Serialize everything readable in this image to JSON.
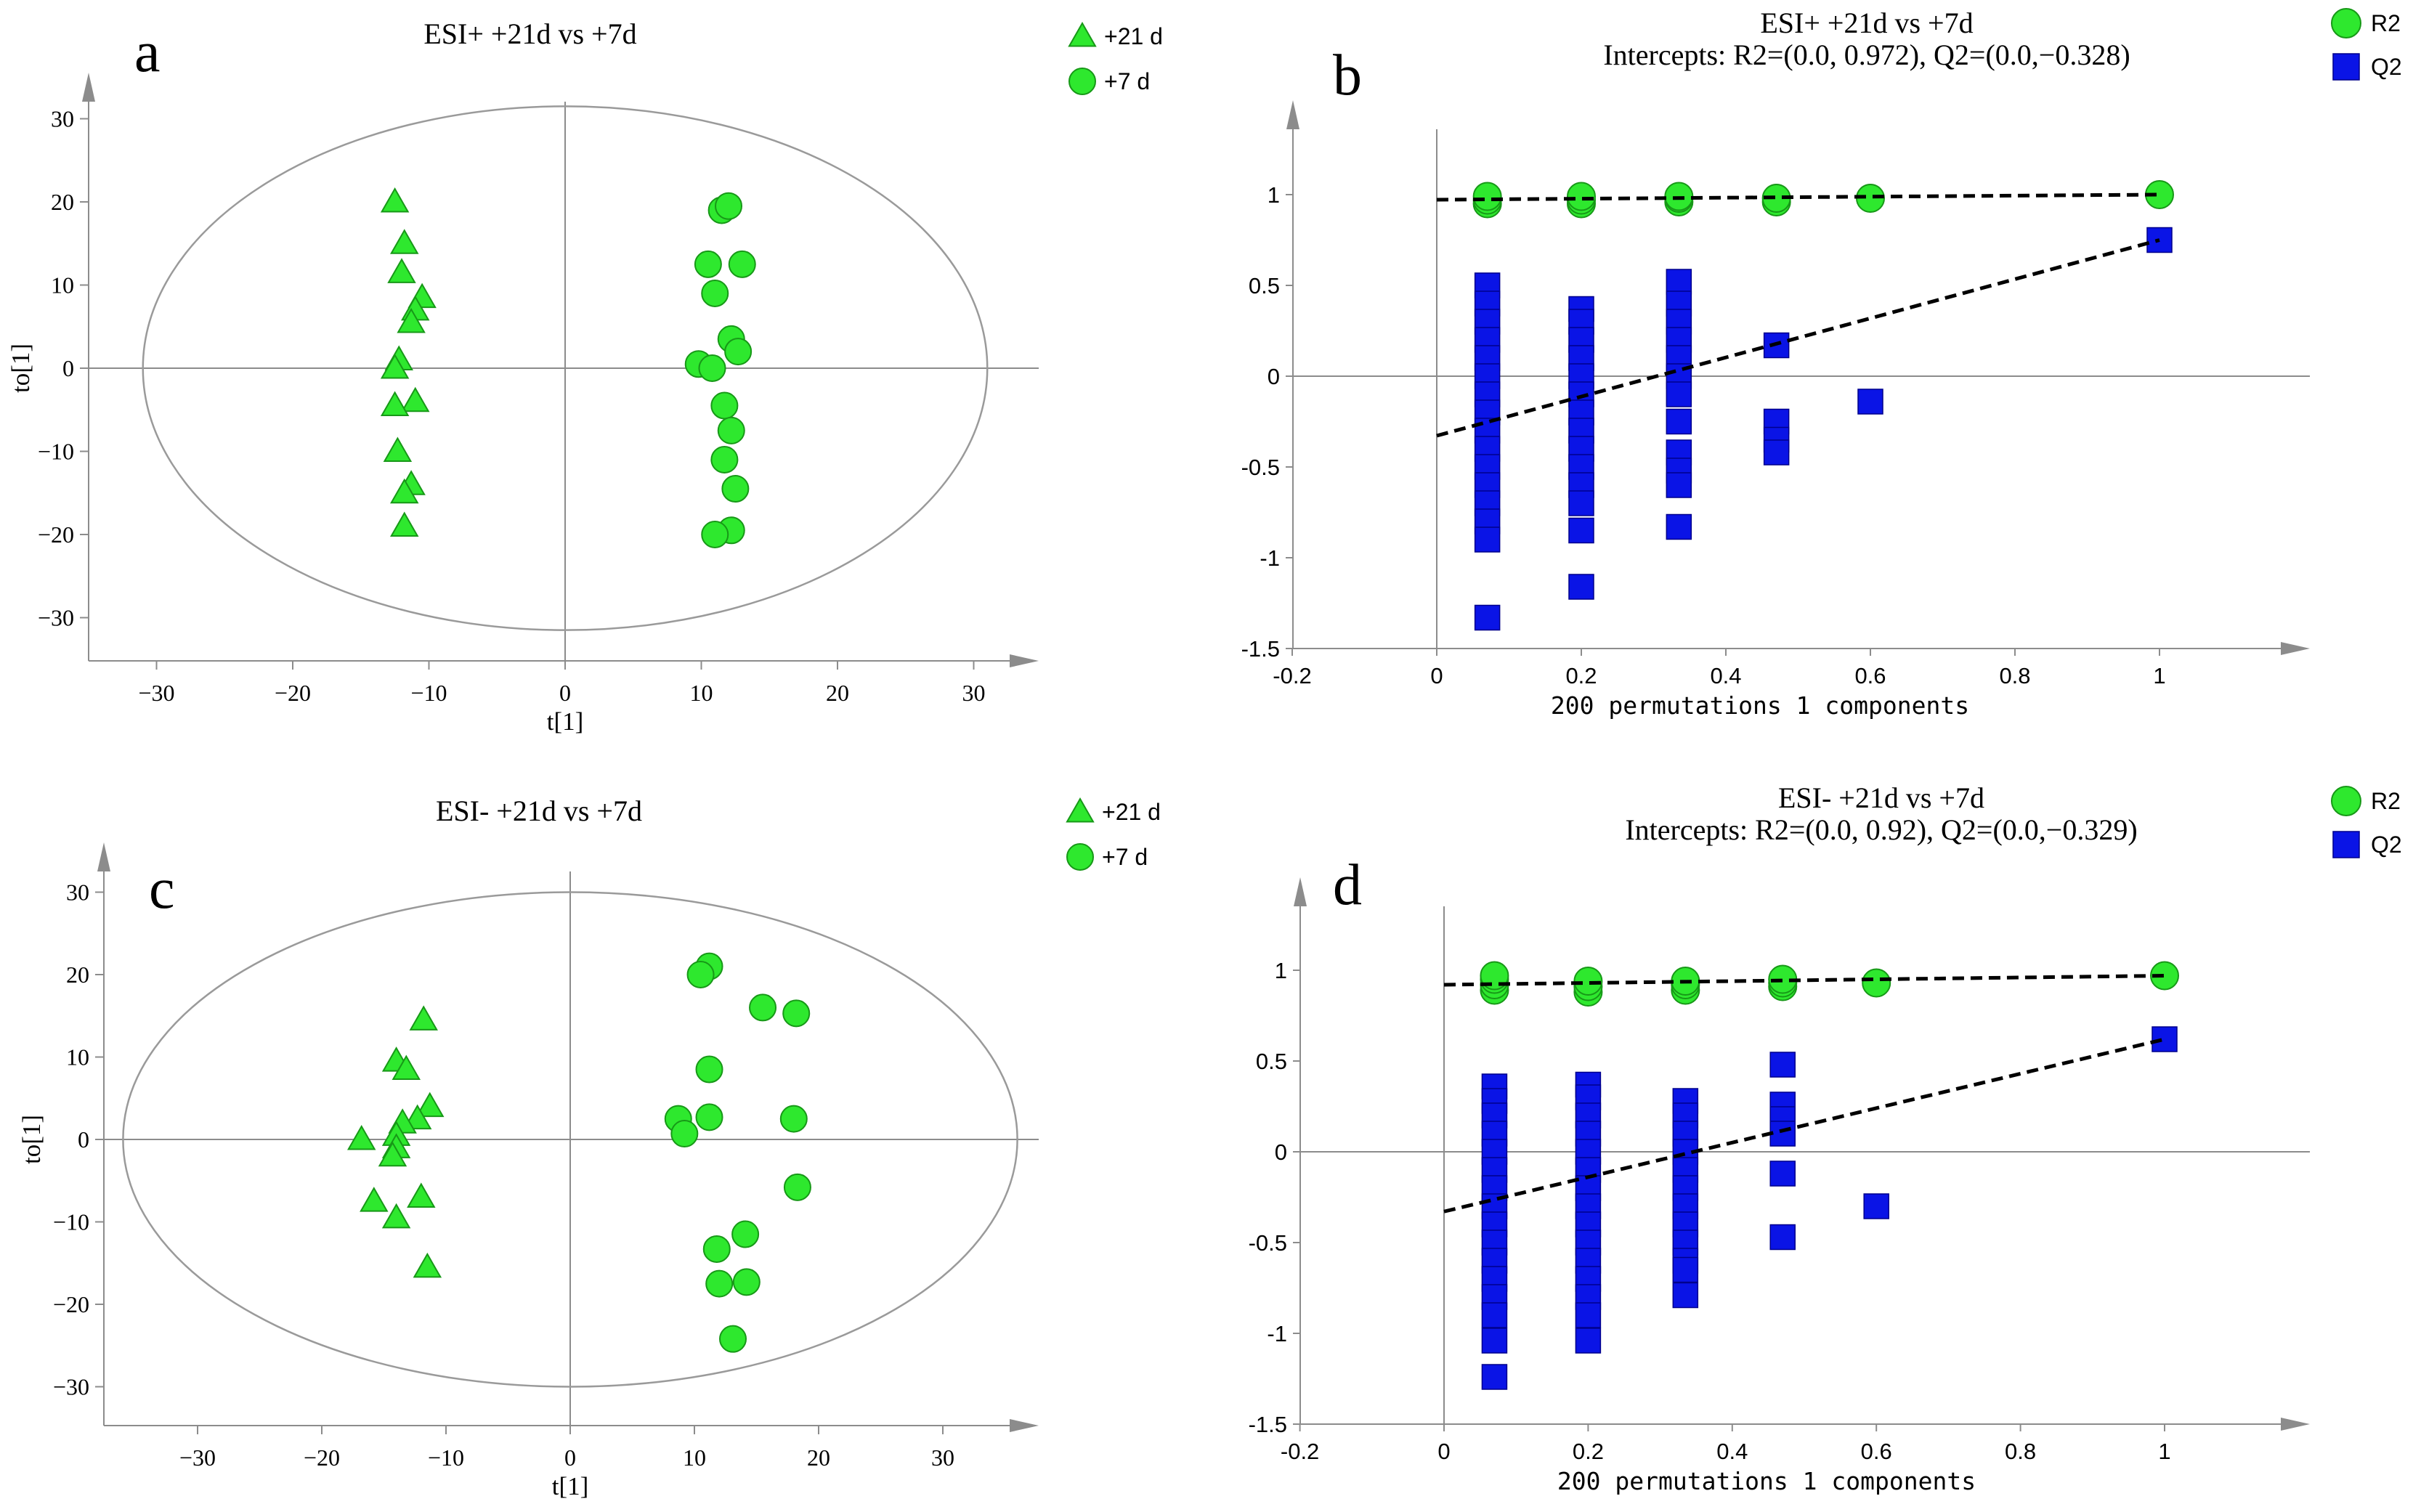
{
  "colors": {
    "green_fill": "#2ee82e",
    "green_stroke": "#179817",
    "blue_fill": "#0a14e6",
    "blue_stroke": "#00008c",
    "axis": "#8c8c8c",
    "ellipse": "#9a9a9a"
  },
  "chart_data": [
    {
      "panel": "a",
      "type": "scatter",
      "title": "ESI+ +21d vs +7d",
      "xlabel": "t[1]",
      "ylabel": "to[1]",
      "xlim": [
        -35,
        35
      ],
      "ylim": [
        -35,
        35
      ],
      "xticks": [
        -30,
        -20,
        -10,
        0,
        10,
        20,
        30
      ],
      "yticks": [
        -30,
        -20,
        -10,
        0,
        10,
        20,
        30
      ],
      "ellipse": {
        "rx": 31,
        "ry": 31.5
      },
      "legend": [
        "+21 d",
        "+7 d"
      ],
      "series": [
        {
          "name": "+21 d",
          "marker": "triangle",
          "points": [
            [
              -12.5,
              20
            ],
            [
              -11.8,
              15
            ],
            [
              -12,
              11.5
            ],
            [
              -10.5,
              8.5
            ],
            [
              -11,
              7
            ],
            [
              -11.3,
              5.5
            ],
            [
              -12.2,
              1
            ],
            [
              -12.5,
              0
            ],
            [
              -11,
              -4
            ],
            [
              -12.5,
              -4.5
            ],
            [
              -12.3,
              -10
            ],
            [
              -11.3,
              -14
            ],
            [
              -11.8,
              -15
            ],
            [
              -11.8,
              -19
            ]
          ]
        },
        {
          "name": "+7 d",
          "marker": "circle",
          "points": [
            [
              11.5,
              19
            ],
            [
              12,
              19.5
            ],
            [
              10.5,
              12.5
            ],
            [
              13,
              12.5
            ],
            [
              11,
              9
            ],
            [
              12.2,
              3.5
            ],
            [
              12.7,
              2
            ],
            [
              9.8,
              0.5
            ],
            [
              10.8,
              0
            ],
            [
              11.7,
              -4.5
            ],
            [
              12.2,
              -7.5
            ],
            [
              11.7,
              -11
            ],
            [
              12.5,
              -14.5
            ],
            [
              12.2,
              -19.5
            ],
            [
              11,
              -20
            ]
          ]
        }
      ]
    },
    {
      "panel": "b",
      "type": "scatter",
      "title": "ESI+ +21d vs +7d",
      "subtitle": "Intercepts: R2=(0.0, 0.972), Q2=(0.0,−0.328)",
      "xlabel": "200 permutations 1 components",
      "xlim": [
        -0.22,
        1.2
      ],
      "ylim": [
        -1.5,
        1.45
      ],
      "xticks": [
        -0.2,
        0,
        0.2,
        0.4,
        0.6,
        0.8,
        1
      ],
      "yticks": [
        -1.5,
        -1,
        -0.5,
        0,
        0.5,
        1
      ],
      "legend": [
        "R2",
        "Q2"
      ],
      "regression_lines": {
        "R2": [
          [
            0,
            0.972
          ],
          [
            1,
            1.0
          ]
        ],
        "Q2": [
          [
            0,
            -0.328
          ],
          [
            1,
            0.75
          ]
        ]
      },
      "series": [
        {
          "name": "R2",
          "marker": "circle",
          "points": [
            [
              0.07,
              0.95
            ],
            [
              0.07,
              0.97
            ],
            [
              0.07,
              0.99
            ],
            [
              0.2,
              0.95
            ],
            [
              0.2,
              0.97
            ],
            [
              0.2,
              0.99
            ],
            [
              0.335,
              0.96
            ],
            [
              0.335,
              0.98
            ],
            [
              0.335,
              0.99
            ],
            [
              0.47,
              0.96
            ],
            [
              0.47,
              0.98
            ],
            [
              0.6,
              0.98
            ],
            [
              1,
              1.0
            ]
          ]
        },
        {
          "name": "Q2",
          "marker": "square",
          "points": [
            [
              0.07,
              0.5
            ],
            [
              0.07,
              0.4
            ],
            [
              0.07,
              0.3
            ],
            [
              0.07,
              0.2
            ],
            [
              0.07,
              0.1
            ],
            [
              0.07,
              0
            ],
            [
              0.07,
              -0.1
            ],
            [
              0.07,
              -0.2
            ],
            [
              0.07,
              -0.3
            ],
            [
              0.07,
              -0.4
            ],
            [
              0.07,
              -0.5
            ],
            [
              0.07,
              -0.6
            ],
            [
              0.07,
              -0.7
            ],
            [
              0.07,
              -0.8
            ],
            [
              0.07,
              -0.9
            ],
            [
              0.07,
              -1.33
            ],
            [
              0.2,
              0.37
            ],
            [
              0.2,
              0.3
            ],
            [
              0.2,
              0.2
            ],
            [
              0.2,
              0.1
            ],
            [
              0.2,
              0
            ],
            [
              0.2,
              -0.1
            ],
            [
              0.2,
              -0.2
            ],
            [
              0.2,
              -0.3
            ],
            [
              0.2,
              -0.4
            ],
            [
              0.2,
              -0.5
            ],
            [
              0.2,
              -0.6
            ],
            [
              0.2,
              -0.7
            ],
            [
              0.2,
              -0.85
            ],
            [
              0.2,
              -1.16
            ],
            [
              0.335,
              0.52
            ],
            [
              0.335,
              0.4
            ],
            [
              0.335,
              0.3
            ],
            [
              0.335,
              0.2
            ],
            [
              0.335,
              0.1
            ],
            [
              0.335,
              0
            ],
            [
              0.335,
              -0.1
            ],
            [
              0.335,
              -0.25
            ],
            [
              0.335,
              -0.42
            ],
            [
              0.335,
              -0.52
            ],
            [
              0.335,
              -0.6
            ],
            [
              0.335,
              -0.83
            ],
            [
              0.47,
              0.17
            ],
            [
              0.47,
              -0.25
            ],
            [
              0.47,
              -0.35
            ],
            [
              0.47,
              -0.42
            ],
            [
              0.6,
              -0.14
            ],
            [
              1,
              0.75
            ]
          ]
        }
      ]
    },
    {
      "panel": "c",
      "type": "scatter",
      "title": "ESI- +21d vs +7d",
      "xlabel": "t[1]",
      "ylabel": "to[1]",
      "xlim": [
        -38,
        38
      ],
      "ylim": [
        -35,
        35
      ],
      "xticks": [
        -30,
        -20,
        -10,
        0,
        10,
        20,
        30
      ],
      "yticks": [
        -30,
        -20,
        -10,
        0,
        10,
        20,
        30
      ],
      "ellipse": {
        "rx": 36,
        "ry": 30
      },
      "legend": [
        "+21 d",
        "+7 d"
      ],
      "series": [
        {
          "name": "+21 d",
          "marker": "triangle",
          "points": [
            [
              -11.8,
              14.5
            ],
            [
              -14,
              9.5
            ],
            [
              -13.2,
              8.5
            ],
            [
              -11.3,
              4
            ],
            [
              -12.3,
              2.5
            ],
            [
              -13.5,
              2
            ],
            [
              -14,
              0.5
            ],
            [
              -16.8,
              0
            ],
            [
              -14,
              -1
            ],
            [
              -14.3,
              -2
            ],
            [
              -12,
              -7
            ],
            [
              -15.8,
              -7.5
            ],
            [
              -14,
              -9.5
            ],
            [
              -11.5,
              -15.5
            ]
          ]
        },
        {
          "name": "+7 d",
          "marker": "circle",
          "points": [
            [
              11.2,
              21
            ],
            [
              10.5,
              20
            ],
            [
              15.5,
              16
            ],
            [
              18.2,
              15.3
            ],
            [
              11.2,
              8.5
            ],
            [
              8.7,
              2.5
            ],
            [
              11.2,
              2.7
            ],
            [
              18,
              2.5
            ],
            [
              9.2,
              0.7
            ],
            [
              18.3,
              -5.8
            ],
            [
              14.1,
              -11.5
            ],
            [
              11.8,
              -13.3
            ],
            [
              12,
              -17.5
            ],
            [
              14.2,
              -17.3
            ],
            [
              13.1,
              -24.2
            ]
          ]
        }
      ]
    },
    {
      "panel": "d",
      "type": "scatter",
      "title": "ESI- +21d vs +7d",
      "subtitle": "Intercepts: R2=(0.0, 0.92), Q2=(0.0,−0.329)",
      "xlabel": "200 permutations 1 components",
      "xlim": [
        -0.22,
        1.2
      ],
      "ylim": [
        -1.5,
        1.5
      ],
      "xticks": [
        -0.2,
        0,
        0.2,
        0.4,
        0.6,
        0.8,
        1
      ],
      "yticks": [
        -1.5,
        -1,
        -0.5,
        0,
        0.5,
        1
      ],
      "legend": [
        "R2",
        "Q2"
      ],
      "regression_lines": {
        "R2": [
          [
            0,
            0.92
          ],
          [
            1,
            0.97
          ]
        ],
        "Q2": [
          [
            0,
            -0.329
          ],
          [
            1,
            0.62
          ]
        ]
      },
      "series": [
        {
          "name": "R2",
          "marker": "circle",
          "points": [
            [
              0.07,
              0.89
            ],
            [
              0.07,
              0.92
            ],
            [
              0.07,
              0.95
            ],
            [
              0.07,
              0.97
            ],
            [
              0.2,
              0.88
            ],
            [
              0.2,
              0.91
            ],
            [
              0.2,
              0.94
            ],
            [
              0.335,
              0.89
            ],
            [
              0.335,
              0.92
            ],
            [
              0.335,
              0.94
            ],
            [
              0.47,
              0.91
            ],
            [
              0.47,
              0.93
            ],
            [
              0.47,
              0.95
            ],
            [
              0.6,
              0.93
            ],
            [
              1,
              0.97
            ]
          ]
        },
        {
          "name": "Q2",
          "marker": "square",
          "points": [
            [
              0.07,
              0.36
            ],
            [
              0.07,
              0.28
            ],
            [
              0.07,
              0.2
            ],
            [
              0.07,
              0.1
            ],
            [
              0.07,
              0
            ],
            [
              0.07,
              -0.1
            ],
            [
              0.07,
              -0.2
            ],
            [
              0.07,
              -0.3
            ],
            [
              0.07,
              -0.4
            ],
            [
              0.07,
              -0.5
            ],
            [
              0.07,
              -0.6
            ],
            [
              0.07,
              -0.7
            ],
            [
              0.07,
              -0.8
            ],
            [
              0.07,
              -0.9
            ],
            [
              0.07,
              -1.04
            ],
            [
              0.07,
              -1.24
            ],
            [
              0.2,
              0.37
            ],
            [
              0.2,
              0.3
            ],
            [
              0.2,
              0.2
            ],
            [
              0.2,
              0.1
            ],
            [
              0.2,
              0
            ],
            [
              0.2,
              -0.1
            ],
            [
              0.2,
              -0.2
            ],
            [
              0.2,
              -0.3
            ],
            [
              0.2,
              -0.4
            ],
            [
              0.2,
              -0.5
            ],
            [
              0.2,
              -0.6
            ],
            [
              0.2,
              -0.7
            ],
            [
              0.2,
              -0.8
            ],
            [
              0.2,
              -0.9
            ],
            [
              0.2,
              -1.04
            ],
            [
              0.335,
              0.28
            ],
            [
              0.335,
              0.2
            ],
            [
              0.335,
              0.1
            ],
            [
              0.335,
              0
            ],
            [
              0.335,
              -0.1
            ],
            [
              0.335,
              -0.2
            ],
            [
              0.335,
              -0.3
            ],
            [
              0.335,
              -0.4
            ],
            [
              0.335,
              -0.5
            ],
            [
              0.335,
              -0.6
            ],
            [
              0.335,
              -0.65
            ],
            [
              0.335,
              -0.79
            ],
            [
              0.47,
              0.48
            ],
            [
              0.47,
              0.26
            ],
            [
              0.47,
              0.18
            ],
            [
              0.47,
              0.1
            ],
            [
              0.47,
              -0.12
            ],
            [
              0.47,
              -0.47
            ],
            [
              0.6,
              -0.3
            ],
            [
              1,
              0.62
            ]
          ]
        }
      ]
    }
  ]
}
